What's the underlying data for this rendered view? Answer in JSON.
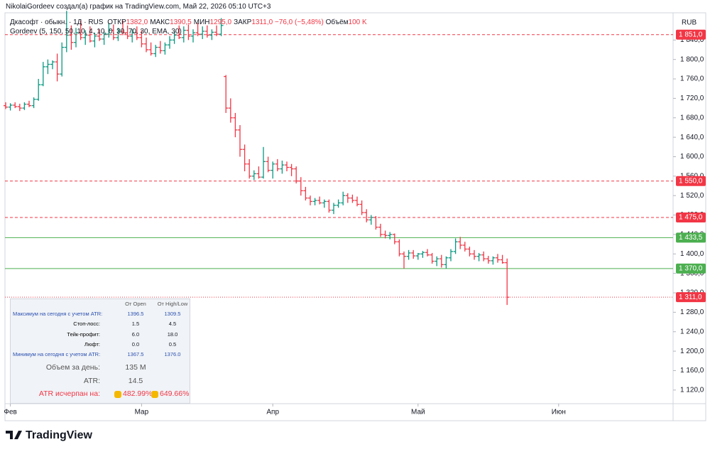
{
  "header": {
    "credit": "NikolaiGordeev создал(а) график на TradingView.com, Май 22, 2026 05:10 UTC+3",
    "symbol": "Дкасофт · обыкн. · 1Д · RUS",
    "legend": [
      [
        "ОТКР",
        "1382,0"
      ],
      [
        "МАКС",
        "1390,5"
      ],
      [
        "МИН",
        "1295,0"
      ],
      [
        "ЗАКР",
        "1311,0"
      ]
    ],
    "change": "−76,0 (−5,48%)",
    "volume_label": "Объём",
    "volume": "100 K",
    "indicator": "Gordeev (5, 150, 50, 10, 4, 10, 0, 30, 70, 30, EMA, 30)",
    "currency": "RUB",
    "logo": "TradingView"
  },
  "chart_data": {
    "type": "ohlc",
    "up_color": "#089981",
    "down_color": "#f23645",
    "ylim": [
      1092,
      1896
    ],
    "yticks": [
      {
        "value": 1120,
        "label": "1 120,0"
      },
      {
        "value": 1160,
        "label": "1 160,0"
      },
      {
        "value": 1200,
        "label": "1 200,0"
      },
      {
        "value": 1240,
        "label": "1 240,0"
      },
      {
        "value": 1280,
        "label": "1 280,0"
      },
      {
        "value": 1320,
        "label": "1 320,0"
      },
      {
        "value": 1360,
        "label": "1 360,0"
      },
      {
        "value": 1400,
        "label": "1 400,0"
      },
      {
        "value": 1440,
        "label": "1 440,0"
      },
      {
        "value": 1480,
        "label": "1 480,0"
      },
      {
        "value": 1520,
        "label": "1 520,0"
      },
      {
        "value": 1560,
        "label": "1 560,0"
      },
      {
        "value": 1600,
        "label": "1 600,0"
      },
      {
        "value": 1640,
        "label": "1 640,0"
      },
      {
        "value": 1680,
        "label": "1 680,0"
      },
      {
        "value": 1720,
        "label": "1 720,0"
      },
      {
        "value": 1760,
        "label": "1 760,0"
      },
      {
        "value": 1800,
        "label": "1 800,0"
      },
      {
        "value": 1840,
        "label": "1 840,0"
      }
    ],
    "xticks": [
      {
        "value": 1,
        "label": "Фев"
      },
      {
        "value": 29,
        "label": "Мар"
      },
      {
        "value": 57,
        "label": "Апр"
      },
      {
        "value": 88,
        "label": "Май"
      },
      {
        "value": 118,
        "label": "Июн"
      }
    ],
    "levels": [
      {
        "value": 1851.0,
        "label": "1 851,0",
        "color": "#f23645",
        "line": "dashed"
      },
      {
        "value": 1550.0,
        "label": "1 550,0",
        "color": "#f23645",
        "line": "dashed"
      },
      {
        "value": 1475.0,
        "label": "1 475,0",
        "color": "#f23645",
        "line": "dashed"
      },
      {
        "value": 1433.5,
        "label": "1 433,5",
        "color": "#4caf50",
        "line": "solid"
      },
      {
        "value": 1370.0,
        "label": "1 370,0",
        "color": "#4caf50",
        "line": "solid"
      },
      {
        "value": 1311.0,
        "label": "1 311,0",
        "color": "#f23645",
        "line": "dotted"
      }
    ],
    "ohlc": [
      [
        1705,
        1712,
        1698,
        1702
      ],
      [
        1702,
        1710,
        1695,
        1706
      ],
      [
        1706,
        1712,
        1700,
        1703
      ],
      [
        1703,
        1709,
        1694,
        1700
      ],
      [
        1700,
        1712,
        1696,
        1708
      ],
      [
        1708,
        1715,
        1702,
        1705
      ],
      [
        1705,
        1722,
        1700,
        1718
      ],
      [
        1718,
        1760,
        1715,
        1748
      ],
      [
        1748,
        1795,
        1745,
        1785
      ],
      [
        1785,
        1800,
        1770,
        1790
      ],
      [
        1790,
        1798,
        1780,
        1795
      ],
      [
        1795,
        1812,
        1755,
        1770
      ],
      [
        1770,
        1835,
        1765,
        1825
      ],
      [
        1825,
        1900,
        1815,
        1850
      ],
      [
        1850,
        1870,
        1820,
        1835
      ],
      [
        1835,
        1865,
        1825,
        1855
      ],
      [
        1855,
        1880,
        1840,
        1845
      ],
      [
        1845,
        1860,
        1830,
        1850
      ],
      [
        1850,
        1868,
        1835,
        1838
      ],
      [
        1838,
        1855,
        1825,
        1848
      ],
      [
        1848,
        1862,
        1838,
        1842
      ],
      [
        1842,
        1858,
        1830,
        1852
      ],
      [
        1852,
        1875,
        1845,
        1860
      ],
      [
        1860,
        1872,
        1840,
        1845
      ],
      [
        1845,
        1865,
        1838,
        1858
      ],
      [
        1858,
        1880,
        1850,
        1855
      ],
      [
        1855,
        1870,
        1842,
        1848
      ],
      [
        1848,
        1862,
        1835,
        1855
      ],
      [
        1855,
        1868,
        1840,
        1845
      ],
      [
        1845,
        1860,
        1825,
        1832
      ],
      [
        1832,
        1845,
        1815,
        1820
      ],
      [
        1820,
        1835,
        1808,
        1812
      ],
      [
        1812,
        1830,
        1805,
        1825
      ],
      [
        1825,
        1838,
        1812,
        1818
      ],
      [
        1818,
        1835,
        1810,
        1830
      ],
      [
        1830,
        1848,
        1822,
        1840
      ],
      [
        1840,
        1858,
        1832,
        1850
      ],
      [
        1850,
        1870,
        1842,
        1845
      ],
      [
        1845,
        1868,
        1835,
        1860
      ],
      [
        1860,
        1872,
        1840,
        1848
      ],
      [
        1848,
        1862,
        1835,
        1855
      ],
      [
        1855,
        1875,
        1848,
        1852
      ],
      [
        1852,
        1868,
        1842,
        1858
      ],
      [
        1858,
        1870,
        1845,
        1850
      ],
      [
        1850,
        1862,
        1840,
        1856
      ],
      [
        1856,
        1870,
        1848,
        1852
      ],
      [
        1852,
        1885,
        1848,
        1870
      ],
      [
        1765,
        1768,
        1690,
        1700
      ],
      [
        1700,
        1720,
        1670,
        1680
      ],
      [
        1680,
        1690,
        1640,
        1655
      ],
      [
        1655,
        1665,
        1600,
        1615
      ],
      [
        1615,
        1625,
        1570,
        1585
      ],
      [
        1585,
        1595,
        1555,
        1560
      ],
      [
        1560,
        1572,
        1552,
        1565
      ],
      [
        1565,
        1580,
        1555,
        1558
      ],
      [
        1558,
        1620,
        1555,
        1590
      ],
      [
        1590,
        1600,
        1568,
        1572
      ],
      [
        1572,
        1590,
        1555,
        1585
      ],
      [
        1585,
        1595,
        1570,
        1575
      ],
      [
        1575,
        1592,
        1565,
        1583
      ],
      [
        1583,
        1590,
        1570,
        1578
      ],
      [
        1578,
        1585,
        1560,
        1575
      ],
      [
        1575,
        1580,
        1545,
        1550
      ],
      [
        1550,
        1558,
        1520,
        1530
      ],
      [
        1530,
        1538,
        1510,
        1515
      ],
      [
        1515,
        1520,
        1500,
        1508
      ],
      [
        1508,
        1515,
        1500,
        1510
      ],
      [
        1510,
        1518,
        1502,
        1505
      ],
      [
        1505,
        1512,
        1495,
        1508
      ],
      [
        1508,
        1512,
        1485,
        1490
      ],
      [
        1490,
        1505,
        1482,
        1500
      ],
      [
        1500,
        1512,
        1495,
        1505
      ],
      [
        1505,
        1528,
        1500,
        1520
      ],
      [
        1520,
        1525,
        1505,
        1515
      ],
      [
        1515,
        1522,
        1505,
        1510
      ],
      [
        1510,
        1518,
        1498,
        1502
      ],
      [
        1502,
        1510,
        1480,
        1485
      ],
      [
        1485,
        1492,
        1465,
        1470
      ],
      [
        1470,
        1480,
        1460,
        1475
      ],
      [
        1475,
        1478,
        1450,
        1455
      ],
      [
        1455,
        1462,
        1435,
        1440
      ],
      [
        1440,
        1448,
        1432,
        1438
      ],
      [
        1438,
        1445,
        1430,
        1440
      ],
      [
        1440,
        1442,
        1420,
        1425
      ],
      [
        1425,
        1430,
        1395,
        1400
      ],
      [
        1400,
        1405,
        1370,
        1395
      ],
      [
        1395,
        1408,
        1388,
        1402
      ],
      [
        1402,
        1408,
        1390,
        1396
      ],
      [
        1396,
        1402,
        1388,
        1400
      ],
      [
        1400,
        1406,
        1392,
        1403
      ],
      [
        1403,
        1410,
        1395,
        1398
      ],
      [
        1398,
        1402,
        1380,
        1385
      ],
      [
        1385,
        1395,
        1375,
        1390
      ],
      [
        1390,
        1398,
        1372,
        1378
      ],
      [
        1378,
        1395,
        1370,
        1392
      ],
      [
        1392,
        1410,
        1385,
        1405
      ],
      [
        1405,
        1432,
        1400,
        1425
      ],
      [
        1425,
        1435,
        1410,
        1418
      ],
      [
        1418,
        1425,
        1405,
        1410
      ],
      [
        1410,
        1415,
        1395,
        1400
      ],
      [
        1400,
        1408,
        1388,
        1395
      ],
      [
        1395,
        1402,
        1385,
        1398
      ],
      [
        1398,
        1405,
        1385,
        1390
      ],
      [
        1390,
        1396,
        1380,
        1386
      ],
      [
        1386,
        1395,
        1378,
        1392
      ],
      [
        1392,
        1400,
        1382,
        1388
      ],
      [
        1388,
        1398,
        1380,
        1382
      ],
      [
        1382,
        1390.5,
        1295,
        1311
      ]
    ]
  },
  "panel": {
    "headers": [
      "От Open",
      "От High/Low"
    ],
    "rows": [
      [
        "Максимум на сегодня с учетом ATR:",
        "1396.5",
        "1309.5"
      ],
      [
        "Стоп-лосс:",
        "1.5",
        "4.5"
      ],
      [
        "Тейк-профит:",
        "6.0",
        "18.0"
      ],
      [
        "Люфт:",
        "0.0",
        "0.5"
      ],
      [
        "Минимум на сегодня с учетом ATR:",
        "1367.5",
        "1376.0"
      ]
    ],
    "summary": [
      [
        "Объем за день:",
        "135 M"
      ],
      [
        "ATR:",
        "14.5"
      ]
    ],
    "exhausted": {
      "label": "ATR исчерпан на:",
      "values": [
        "482.99%",
        "649.66%"
      ]
    }
  }
}
